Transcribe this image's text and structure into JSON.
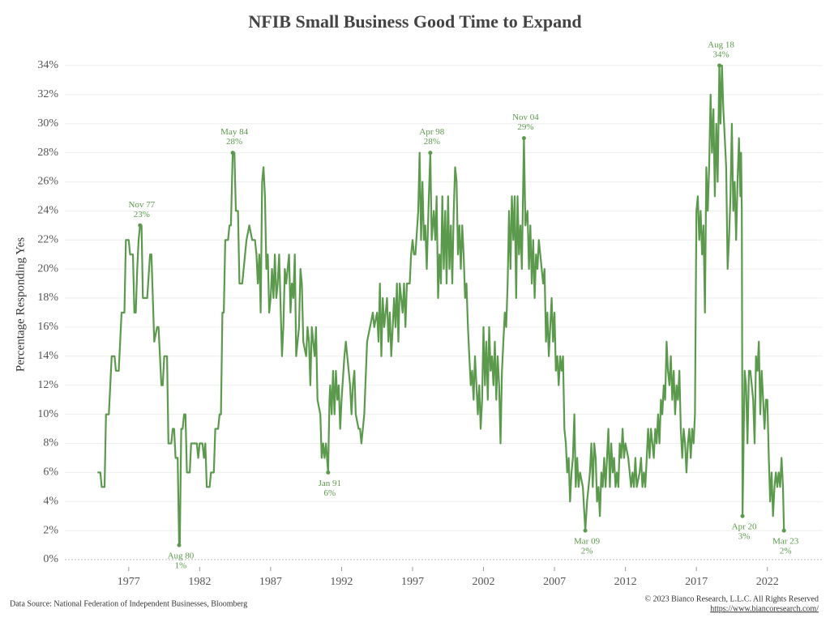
{
  "chart_data": {
    "type": "line",
    "title": "NFIB Small Business Good Time to Expand",
    "y_label": "Percentage Responding Yes",
    "source": "Data Source: National Federation of Independent Businesses, Bloomberg",
    "copyright": "© 2023 Bianco Research, L.L.C. All Rights Reserved",
    "url": "https://www.biancoresearch.com/",
    "xlim": [
      1972.5,
      2025.9
    ],
    "ylim": [
      -0.5,
      35.5
    ],
    "xticks": [
      1977,
      1982,
      1987,
      1992,
      1997,
      2002,
      2007,
      2012,
      2017,
      2022
    ],
    "yticks": [
      {
        "value": 0,
        "label": "0%"
      },
      {
        "value": 2,
        "label": "2%"
      },
      {
        "value": 4,
        "label": "4%"
      },
      {
        "value": 6,
        "label": "6%"
      },
      {
        "value": 8,
        "label": "8%"
      },
      {
        "value": 10,
        "label": "10%"
      },
      {
        "value": 12,
        "label": "12%"
      },
      {
        "value": 14,
        "label": "14%"
      },
      {
        "value": 16,
        "label": "16%"
      },
      {
        "value": 18,
        "label": "18%"
      },
      {
        "value": 20,
        "label": "20%"
      },
      {
        "value": 22,
        "label": "22%"
      },
      {
        "value": 24,
        "label": "24%"
      },
      {
        "value": 26,
        "label": "26%"
      },
      {
        "value": 28,
        "label": "28%"
      },
      {
        "value": 30,
        "label": "30%"
      },
      {
        "value": 32,
        "label": "32%"
      },
      {
        "value": 34,
        "label": "34%"
      }
    ],
    "grid": true,
    "x": [
      1974.8,
      1975.0,
      1975.1,
      1975.3,
      1975.4,
      1975.6,
      1975.8,
      1976.0,
      1976.1,
      1976.3,
      1976.5,
      1976.7,
      1976.8,
      1977.0,
      1977.1,
      1977.3,
      1977.4,
      1977.5,
      1977.6,
      1977.7,
      1977.8,
      1977.9,
      1978.0,
      1978.3,
      1978.5,
      1978.6,
      1978.8,
      1979.0,
      1979.1,
      1979.3,
      1979.4,
      1979.5,
      1979.7,
      1979.8,
      1980.0,
      1980.1,
      1980.2,
      1980.3,
      1980.45,
      1980.55,
      1980.6,
      1980.7,
      1980.8,
      1980.9,
      1981.0,
      1981.1,
      1981.3,
      1981.4,
      1981.6,
      1981.8,
      1981.9,
      1982.0,
      1982.2,
      1982.3,
      1982.4,
      1982.5,
      1982.7,
      1982.8,
      1983.0,
      1983.1,
      1983.3,
      1983.4,
      1983.5,
      1983.6,
      1983.7,
      1983.8,
      1984.0,
      1984.1,
      1984.2,
      1984.33,
      1984.45,
      1984.55,
      1984.7,
      1984.8,
      1985.0,
      1985.1,
      1985.3,
      1985.5,
      1985.7,
      1985.9,
      1986.0,
      1986.1,
      1986.2,
      1986.3,
      1986.4,
      1986.5,
      1986.6,
      1986.7,
      1986.8,
      1986.9,
      1987.0,
      1987.1,
      1987.2,
      1987.3,
      1987.4,
      1987.5,
      1987.6,
      1987.8,
      1987.9,
      1988.0,
      1988.1,
      1988.3,
      1988.4,
      1988.5,
      1988.6,
      1988.7,
      1988.8,
      1989.0,
      1989.1,
      1989.2,
      1989.3,
      1989.5,
      1989.6,
      1989.7,
      1989.8,
      1989.9,
      1990.1,
      1990.2,
      1990.3,
      1990.5,
      1990.6,
      1990.7,
      1990.8,
      1990.9,
      1991.05,
      1991.15,
      1991.2,
      1991.3,
      1991.4,
      1991.5,
      1991.6,
      1991.7,
      1991.8,
      1991.9,
      1992.0,
      1992.2,
      1992.3,
      1992.4,
      1992.5,
      1992.6,
      1992.7,
      1992.8,
      1992.9,
      1993.0,
      1993.2,
      1993.3,
      1993.4,
      1993.6,
      1993.8,
      1994.0,
      1994.2,
      1994.3,
      1994.5,
      1994.6,
      1994.7,
      1994.8,
      1994.9,
      1995.0,
      1995.2,
      1995.3,
      1995.4,
      1995.5,
      1995.6,
      1995.7,
      1995.8,
      1995.9,
      1996.0,
      1996.1,
      1996.3,
      1996.4,
      1996.5,
      1996.6,
      1996.8,
      1996.9,
      1997.0,
      1997.1,
      1997.2,
      1997.4,
      1997.5,
      1997.6,
      1997.7,
      1997.8,
      1997.9,
      1998.0,
      1998.15,
      1998.25,
      1998.35,
      1998.5,
      1998.6,
      1998.7,
      1998.8,
      1998.9,
      1999.0,
      1999.1,
      1999.2,
      1999.3,
      1999.4,
      1999.5,
      1999.6,
      1999.7,
      1999.8,
      1999.9,
      2000.0,
      2000.1,
      2000.2,
      2000.3,
      2000.4,
      2000.5,
      2000.6,
      2000.7,
      2000.8,
      2000.9,
      2001.0,
      2001.1,
      2001.2,
      2001.3,
      2001.4,
      2001.5,
      2001.6,
      2001.7,
      2001.8,
      2001.9,
      2002.0,
      2002.1,
      2002.2,
      2002.3,
      2002.4,
      2002.5,
      2002.6,
      2002.7,
      2002.8,
      2002.9,
      2003.0,
      2003.1,
      2003.2,
      2003.3,
      2003.4,
      2003.5,
      2003.6,
      2003.7,
      2003.8,
      2003.9,
      2004.0,
      2004.1,
      2004.2,
      2004.3,
      2004.4,
      2004.5,
      2004.6,
      2004.7,
      2004.85,
      2004.95,
      2005.1,
      2005.2,
      2005.3,
      2005.4,
      2005.5,
      2005.6,
      2005.7,
      2005.8,
      2005.9,
      2006.1,
      2006.2,
      2006.3,
      2006.4,
      2006.5,
      2006.6,
      2006.7,
      2006.8,
      2006.9,
      2007.0,
      2007.1,
      2007.2,
      2007.3,
      2007.4,
      2007.5,
      2007.6,
      2007.7,
      2007.8,
      2007.9,
      2008.0,
      2008.1,
      2008.2,
      2008.3,
      2008.4,
      2008.5,
      2008.6,
      2008.7,
      2008.8,
      2009.0,
      2009.17,
      2009.3,
      2009.4,
      2009.5,
      2009.6,
      2009.7,
      2009.8,
      2009.9,
      2010.0,
      2010.1,
      2010.2,
      2010.3,
      2010.4,
      2010.5,
      2010.6,
      2010.7,
      2010.8,
      2010.9,
      2011.0,
      2011.1,
      2011.2,
      2011.3,
      2011.4,
      2011.5,
      2011.6,
      2011.7,
      2011.8,
      2011.9,
      2012.0,
      2012.2,
      2012.3,
      2012.4,
      2012.5,
      2012.6,
      2012.7,
      2012.8,
      2013.0,
      2013.1,
      2013.2,
      2013.3,
      2013.4,
      2013.5,
      2013.6,
      2013.7,
      2013.8,
      2013.9,
      2014.0,
      2014.1,
      2014.2,
      2014.3,
      2014.4,
      2014.5,
      2014.6,
      2014.7,
      2014.8,
      2014.9,
      2015.0,
      2015.1,
      2015.2,
      2015.3,
      2015.4,
      2015.5,
      2015.6,
      2015.7,
      2015.8,
      2015.9,
      2016.0,
      2016.1,
      2016.2,
      2016.3,
      2016.4,
      2016.5,
      2016.6,
      2016.7,
      2016.8,
      2016.9,
      2017.0,
      2017.1,
      2017.2,
      2017.3,
      2017.4,
      2017.5,
      2017.6,
      2017.7,
      2017.8,
      2017.9,
      2018.0,
      2018.1,
      2018.2,
      2018.3,
      2018.4,
      2018.5,
      2018.62,
      2018.7,
      2018.8,
      2018.9,
      2019.0,
      2019.1,
      2019.2,
      2019.3,
      2019.4,
      2019.5,
      2019.6,
      2019.7,
      2019.8,
      2019.9,
      2020.0,
      2020.1,
      2020.15,
      2020.2,
      2020.25,
      2020.4,
      2020.5,
      2020.6,
      2020.7,
      2020.8,
      2020.9,
      2021.0,
      2021.1,
      2021.2,
      2021.3,
      2021.4,
      2021.5,
      2021.6,
      2021.7,
      2021.8,
      2021.9,
      2022.0,
      2022.1,
      2022.2,
      2022.3,
      2022.4,
      2022.5,
      2022.6,
      2022.7,
      2022.8,
      2022.9,
      2023.0,
      2023.1,
      2023.17
    ],
    "series": [
      {
        "color": "#5b9a4c",
        "values": [
          6,
          6,
          5,
          5,
          10,
          10,
          14,
          14,
          13,
          13,
          17,
          17,
          22,
          22,
          21,
          21,
          17,
          17,
          20,
          22,
          23,
          23,
          18,
          18,
          21,
          21,
          15,
          16,
          16,
          12,
          12,
          14,
          14,
          8,
          8,
          9,
          9,
          7,
          7,
          1,
          1,
          9,
          9,
          10,
          10,
          6,
          6,
          8,
          8,
          8,
          7,
          8,
          8,
          7,
          8,
          5,
          5,
          6,
          6,
          9,
          9,
          10,
          10,
          17,
          17,
          22,
          22,
          23,
          23,
          28,
          28,
          24,
          24,
          19,
          19,
          20,
          22,
          23,
          22,
          22,
          21,
          19,
          21,
          17,
          26,
          27,
          25,
          20,
          21,
          17,
          18,
          20,
          18,
          21,
          18,
          19,
          21,
          14,
          16,
          20,
          19,
          21,
          17,
          19,
          18,
          21,
          14,
          16,
          20,
          19,
          15,
          14,
          16,
          15,
          12,
          16,
          14,
          16,
          11,
          10,
          7,
          8,
          7,
          8,
          6,
          11,
          12,
          10,
          13,
          10,
          13,
          11,
          12,
          9,
          11,
          14,
          15,
          14,
          13,
          12,
          10,
          12,
          13,
          10,
          9,
          9,
          8,
          10,
          15,
          16,
          17,
          16,
          17,
          15,
          19,
          14,
          18,
          16,
          18,
          15,
          17,
          14,
          16,
          18,
          16,
          19,
          15,
          19,
          17,
          19,
          16,
          19,
          19,
          21,
          22,
          21,
          21,
          24,
          28,
          22,
          26,
          22,
          23,
          20,
          25,
          28,
          22,
          24,
          22,
          25,
          18,
          21,
          19,
          25,
          20,
          24,
          19,
          25,
          20,
          23,
          19,
          24,
          27,
          26,
          21,
          23,
          20,
          23,
          21,
          18,
          19,
          16,
          14,
          12,
          13,
          11,
          14,
          12,
          10,
          12,
          9,
          11,
          16,
          12,
          15,
          11,
          16,
          13,
          14,
          12,
          15,
          11,
          14,
          12,
          8,
          13,
          15,
          17,
          16,
          19,
          24,
          20,
          25,
          22,
          25,
          18,
          25,
          21,
          23,
          20,
          29,
          23,
          24,
          20,
          23,
          19,
          22,
          18,
          21,
          20,
          22,
          20,
          19,
          20,
          15,
          17,
          14,
          16,
          18,
          15,
          17,
          13,
          14,
          12,
          14,
          13,
          14,
          9,
          8,
          6,
          7,
          4,
          6,
          7,
          10,
          5,
          7,
          5,
          6,
          5,
          2,
          4,
          5,
          6,
          8,
          5,
          8,
          7,
          4,
          5,
          3,
          6,
          5,
          7,
          5,
          7,
          9,
          5,
          8,
          6,
          7,
          5,
          6,
          5,
          8,
          7,
          9,
          7,
          8,
          7,
          6,
          5,
          6,
          5,
          7,
          5,
          6,
          7,
          5,
          6,
          5,
          7,
          9,
          7,
          9,
          8,
          7,
          9,
          8,
          10,
          8,
          11,
          10,
          12,
          11,
          15,
          13,
          12,
          14,
          11,
          13,
          10,
          12,
          11,
          13,
          9,
          7,
          9,
          8,
          6,
          8,
          9,
          7,
          9,
          8,
          10,
          24,
          25,
          22,
          24,
          21,
          23,
          17,
          27,
          24,
          27,
          32,
          28,
          31,
          25,
          30,
          26,
          34,
          30,
          34,
          31,
          29,
          27,
          20,
          22,
          25,
          30,
          24,
          26,
          22,
          26,
          29,
          25,
          28,
          24,
          3,
          13,
          12,
          8,
          13,
          13,
          12,
          11,
          8,
          14,
          13,
          15,
          10,
          13,
          11,
          9,
          11,
          11,
          7,
          4,
          6,
          3,
          5,
          6,
          5,
          6,
          5,
          7,
          5,
          2
        ]
      }
    ],
    "annotations": [
      {
        "label": "Nov 77",
        "x": 1977.8,
        "value": 23,
        "value_label": "23%"
      },
      {
        "label": "Aug 80",
        "x": 1980.55,
        "value": 1,
        "value_label": "1%"
      },
      {
        "label": "May 84",
        "x": 1984.33,
        "value": 28,
        "value_label": "28%"
      },
      {
        "label": "Jan 91",
        "x": 1991.05,
        "value": 6,
        "value_label": "6%"
      },
      {
        "label": "Apr 98",
        "x": 1998.25,
        "value": 28,
        "value_label": "28%"
      },
      {
        "label": "Nov 04",
        "x": 2004.85,
        "value": 29,
        "value_label": "29%"
      },
      {
        "label": "Mar 09",
        "x": 2009.17,
        "value": 2,
        "value_label": "2%"
      },
      {
        "label": "Aug 18",
        "x": 2018.62,
        "value": 34,
        "value_label": "34%"
      },
      {
        "label": "Apr 20",
        "x": 2020.25,
        "value": 3,
        "value_label": "3%"
      },
      {
        "label": "Mar 23",
        "x": 2023.17,
        "value": 2,
        "value_label": "2%"
      }
    ]
  }
}
